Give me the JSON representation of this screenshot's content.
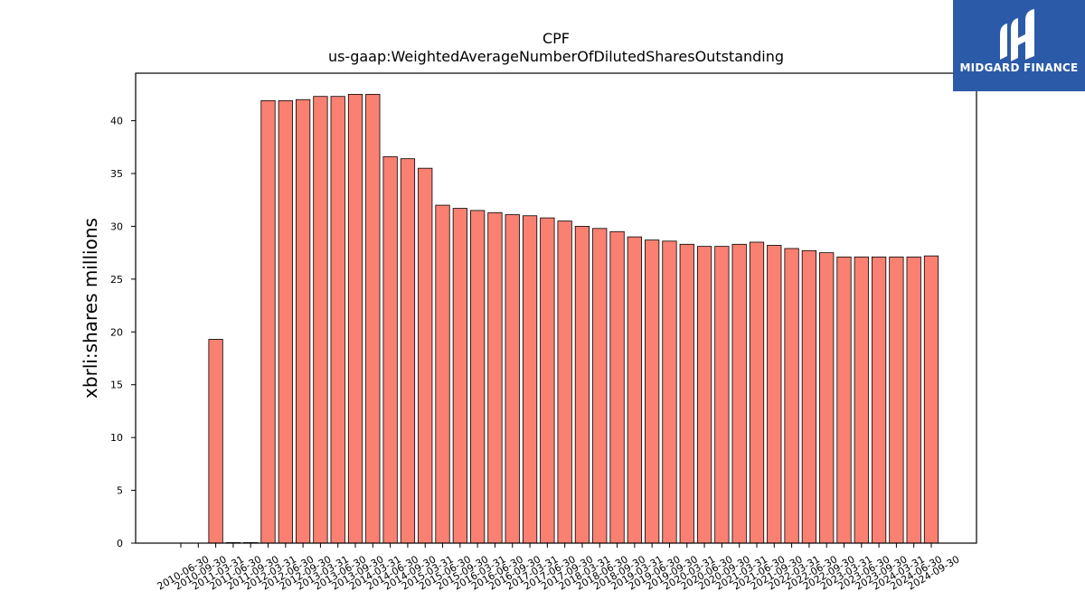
{
  "chart_data": {
    "type": "bar",
    "title": "CPF",
    "subtitle": "us-gaap:WeightedAverageNumberOfDilutedSharesOutstanding",
    "xlabel": "",
    "ylabel": "xbrli:shares millions",
    "ylim": [
      0,
      44.5
    ],
    "yticks": [
      0,
      5,
      10,
      15,
      20,
      25,
      30,
      35,
      40
    ],
    "grid": false,
    "bar_color": "#fa8072",
    "categories": [
      "2010-06-30",
      "2010-09-30",
      "2011-03-31",
      "2011-06-30",
      "2011-09-30",
      "2012-03-31",
      "2012-06-30",
      "2012-09-30",
      "2013-03-31",
      "2013-06-30",
      "2013-09-30",
      "2014-03-31",
      "2014-06-30",
      "2014-09-30",
      "2015-03-31",
      "2015-06-30",
      "2015-09-30",
      "2016-03-31",
      "2016-06-30",
      "2016-09-30",
      "2017-03-31",
      "2017-06-30",
      "2017-09-30",
      "2018-03-31",
      "2018-06-30",
      "2018-09-30",
      "2019-03-31",
      "2019-06-30",
      "2019-09-30",
      "2020-03-31",
      "2020-06-30",
      "2020-09-30",
      "2021-03-31",
      "2021-06-30",
      "2021-09-30",
      "2022-03-31",
      "2022-06-30",
      "2022-09-30",
      "2023-03-31",
      "2023-06-30",
      "2023-09-30",
      "2024-03-31",
      "2024-06-30",
      "2024-09-30"
    ],
    "values": [
      0,
      0,
      19.3,
      0.05,
      0.05,
      41.9,
      41.9,
      42.0,
      42.3,
      42.3,
      42.5,
      42.5,
      36.6,
      36.4,
      35.5,
      32.0,
      31.7,
      31.5,
      31.3,
      31.1,
      31.0,
      30.8,
      30.5,
      30.0,
      29.8,
      29.5,
      29.0,
      28.7,
      28.6,
      28.3,
      28.1,
      28.1,
      28.3,
      28.5,
      28.2,
      27.9,
      27.7,
      27.5,
      27.1,
      27.1,
      27.1,
      27.1,
      27.1,
      27.2
    ]
  },
  "logo": {
    "text": "MIDGARD FINANCE",
    "background": "#2b5aa8",
    "icon": "midgard-logo-icon"
  }
}
